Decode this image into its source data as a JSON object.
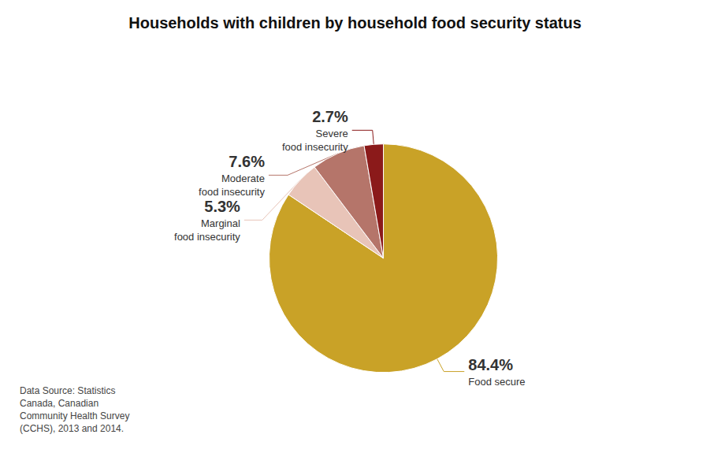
{
  "chart_data": {
    "type": "pie",
    "title": "Households with children by household food security status",
    "categories": [
      "Food secure",
      "Marginal\nfood insecurity",
      "Moderate\nfood insecurity",
      "Severe\nfood insecurity"
    ],
    "values": [
      84.4,
      5.3,
      7.6,
      2.7
    ],
    "value_labels": [
      "84.4%",
      "5.3%",
      "7.6%",
      "2.7%"
    ],
    "colors": [
      "#C9A227",
      "#E8C4B8",
      "#B5756A",
      "#8B1A1A"
    ],
    "data_labels": true,
    "annotations": [
      "Data Source: Statistics\nCanada, Canadian\nCommunity Health Survey\n(CCHS), 2013 and 2014."
    ]
  }
}
